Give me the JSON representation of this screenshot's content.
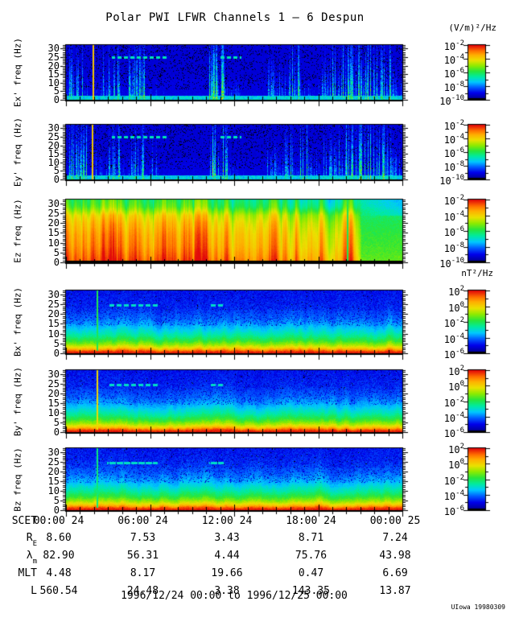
{
  "chart_data": {
    "type": "heatmap",
    "title": "Polar PWI LFWR Channels 1 — 6 Despun",
    "credit": "UIowa 19980309",
    "x": {
      "prefix": "SCET",
      "tick_labels": [
        "00:00 24",
        "06:00 24",
        "12:00 24",
        "18:00 24",
        "00:00 25"
      ],
      "range_text": "1996/12/24 00:00 to 1996/12/25 00:00",
      "hours_span": 24
    },
    "y": {
      "label_suffix": "freq (Hz)",
      "range": [
        0,
        32
      ],
      "ticks": [
        0,
        5,
        10,
        15,
        20,
        25,
        30
      ]
    },
    "colorbars": {
      "e": {
        "unit": "(V/m)²/Hz",
        "decade_labels": [
          -2,
          -4,
          -6,
          -8,
          -10
        ],
        "decades_total": 8
      },
      "b": {
        "unit": "nT²/Hz",
        "decade_labels": [
          2,
          0,
          -2,
          -4,
          -6
        ],
        "decades_total": 8
      }
    },
    "dash_ranges": {
      "e": [
        [
          0.135,
          0.3
        ],
        [
          0.455,
          0.52
        ]
      ],
      "b": [
        [
          0.122,
          0.272
        ],
        [
          0.424,
          0.468
        ]
      ]
    },
    "panels": [
      {
        "ylabel": "Ex' freq (Hz)",
        "style": "efield",
        "colorbar": "e",
        "seed": 101,
        "vline": 0.078,
        "segments": [
          [
            0,
            0.055,
            0.75
          ],
          [
            0.055,
            0.075,
            0.35
          ],
          [
            0.083,
            0.105,
            0.3
          ],
          [
            0.105,
            0.16,
            0.75
          ],
          [
            0.16,
            0.18,
            0.25
          ],
          [
            0.18,
            0.235,
            0.8
          ],
          [
            0.235,
            0.27,
            0.55
          ],
          [
            0.27,
            0.3,
            0.25
          ],
          [
            0.3,
            0.42,
            0.1
          ],
          [
            0.42,
            0.475,
            1.0
          ],
          [
            0.475,
            0.52,
            0.35
          ],
          [
            0.52,
            0.6,
            0.1
          ],
          [
            0.6,
            0.66,
            0.55
          ],
          [
            0.66,
            0.7,
            0.85
          ],
          [
            0.7,
            0.75,
            0.35
          ],
          [
            0.75,
            0.79,
            0.55
          ],
          [
            0.79,
            0.97,
            0.85
          ],
          [
            0.97,
            1,
            0.45
          ]
        ]
      },
      {
        "ylabel": "Ey' freq (Hz)",
        "style": "efield",
        "colorbar": "e",
        "seed": 202,
        "vline": 0.077,
        "segments": [
          [
            0,
            0.06,
            0.8
          ],
          [
            0.06,
            0.075,
            0.4
          ],
          [
            0.083,
            0.11,
            0.45
          ],
          [
            0.11,
            0.165,
            0.7
          ],
          [
            0.165,
            0.185,
            0.3
          ],
          [
            0.185,
            0.24,
            0.75
          ],
          [
            0.24,
            0.275,
            0.5
          ],
          [
            0.275,
            0.31,
            0.2
          ],
          [
            0.31,
            0.42,
            0.1
          ],
          [
            0.42,
            0.48,
            1.0
          ],
          [
            0.48,
            0.53,
            0.3
          ],
          [
            0.53,
            0.595,
            0.12
          ],
          [
            0.595,
            0.65,
            0.5
          ],
          [
            0.65,
            0.72,
            0.8
          ],
          [
            0.72,
            0.76,
            0.45
          ],
          [
            0.76,
            0.8,
            0.6
          ],
          [
            0.8,
            0.965,
            0.9
          ],
          [
            0.965,
            1,
            0.5
          ]
        ]
      },
      {
        "ylabel": "Ez freq (Hz)",
        "style": "ez",
        "colorbar": "e",
        "seed": 303,
        "vline": 0.835,
        "green_start": 0.868
      },
      {
        "ylabel": "Bx' freq (Hz)",
        "style": "bfield",
        "colorbar": "b",
        "seed": 404,
        "vline": 0.092,
        "vline_t": 0.5,
        "pline": 0.447,
        "pline_h": 12,
        "pline_t": 0.45,
        "scale": 1.0
      },
      {
        "ylabel": "By' freq (Hz)",
        "style": "bfield",
        "colorbar": "b",
        "seed": 505,
        "vline": 0.092,
        "vline_t": 0.74,
        "pline": 0.447,
        "pline_h": 15,
        "pline_t": 0.68,
        "scale": 1.0
      },
      {
        "ylabel": "Bz freq (Hz)",
        "style": "bfield",
        "colorbar": "b",
        "seed": 606,
        "vline": 0.092,
        "vline_t": 0.46,
        "pline": 0.447,
        "pline_h": 19,
        "pline_t": 0.55,
        "scale": 0.94
      }
    ],
    "ephemeris": {
      "rows": [
        {
          "label": "R",
          "sub": "E",
          "values": [
            "8.60",
            "7.53",
            "3.43",
            "8.71",
            "7.24"
          ]
        },
        {
          "label": "λ",
          "sub": "m",
          "values": [
            "82.90",
            "56.31",
            "4.44",
            "75.76",
            "43.98"
          ]
        },
        {
          "label": "MLT",
          "sub": "",
          "values": [
            "4.48",
            "8.17",
            "19.66",
            "0.47",
            "6.69"
          ]
        },
        {
          "label": "L",
          "sub": "",
          "values": [
            "560.54",
            "24.48",
            "3.38",
            "143.35",
            "13.87"
          ]
        }
      ]
    }
  }
}
